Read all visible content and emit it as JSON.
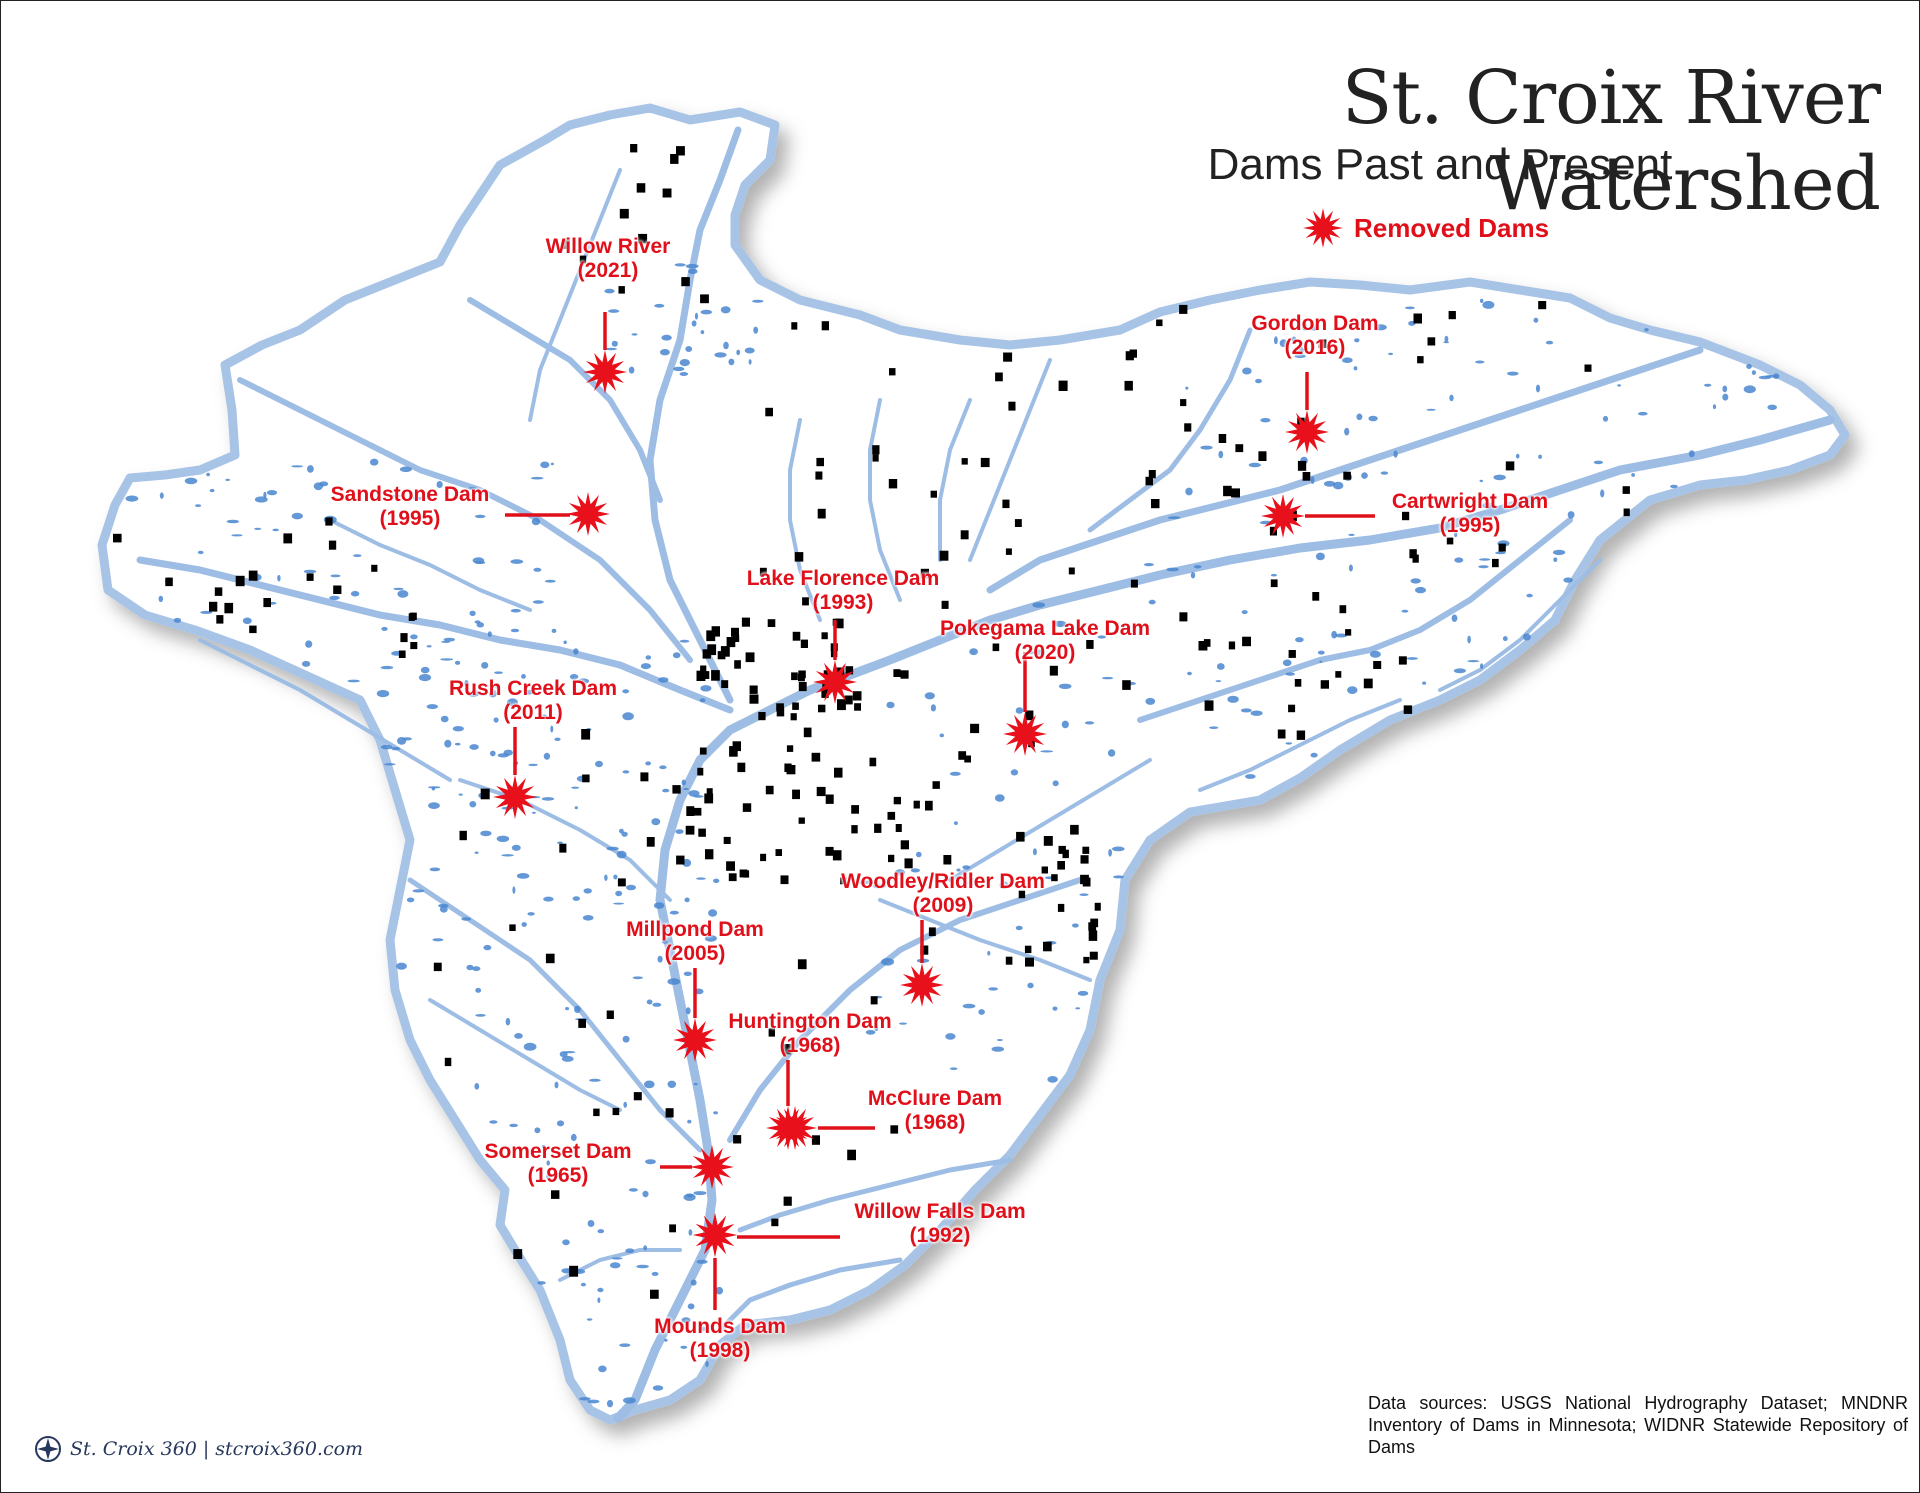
{
  "map": {
    "title": "St. Croix River Watershed",
    "subtitle": "Dams Past and Present",
    "legend": {
      "removed_label": "Removed Dams",
      "removed_color": "#e8101a"
    },
    "colors": {
      "watershed_fill": "#ffffff",
      "watershed_border": "#9dbce2",
      "water": "#4a86cf",
      "dam_marker": "#000000"
    },
    "removed_dams": [
      {
        "name": "Willow River",
        "year": "(2021)"
      },
      {
        "name": "Sandstone Dam",
        "year": "(1995)"
      },
      {
        "name": "Gordon Dam",
        "year": "(2016)"
      },
      {
        "name": "Cartwright Dam",
        "year": "(1995)"
      },
      {
        "name": "Lake Florence Dam",
        "year": "(1993)"
      },
      {
        "name": "Pokegama Lake Dam",
        "year": "(2020)"
      },
      {
        "name": "Rush Creek Dam",
        "year": "(2011)"
      },
      {
        "name": "Woodley/Ridler Dam",
        "year": "(2009)"
      },
      {
        "name": "Millpond Dam",
        "year": "(2005)"
      },
      {
        "name": "Huntington Dam",
        "year": "(1968)"
      },
      {
        "name": "McClure Dam",
        "year": "(1968)"
      },
      {
        "name": "Somerset Dam",
        "year": "(1965)"
      },
      {
        "name": "Willow Falls Dam",
        "year": "(1992)"
      },
      {
        "name": "Mounds Dam",
        "year": "(1998)"
      }
    ],
    "data_sources": "Data sources: USGS National Hydrography Dataset; MNDNR Inventory of Dams in Minnesota; WIDNR Statewide Repository of Dams",
    "credit": {
      "brand": "St. Croix 360",
      "separator": "|",
      "site": "stcroix360.com"
    }
  }
}
